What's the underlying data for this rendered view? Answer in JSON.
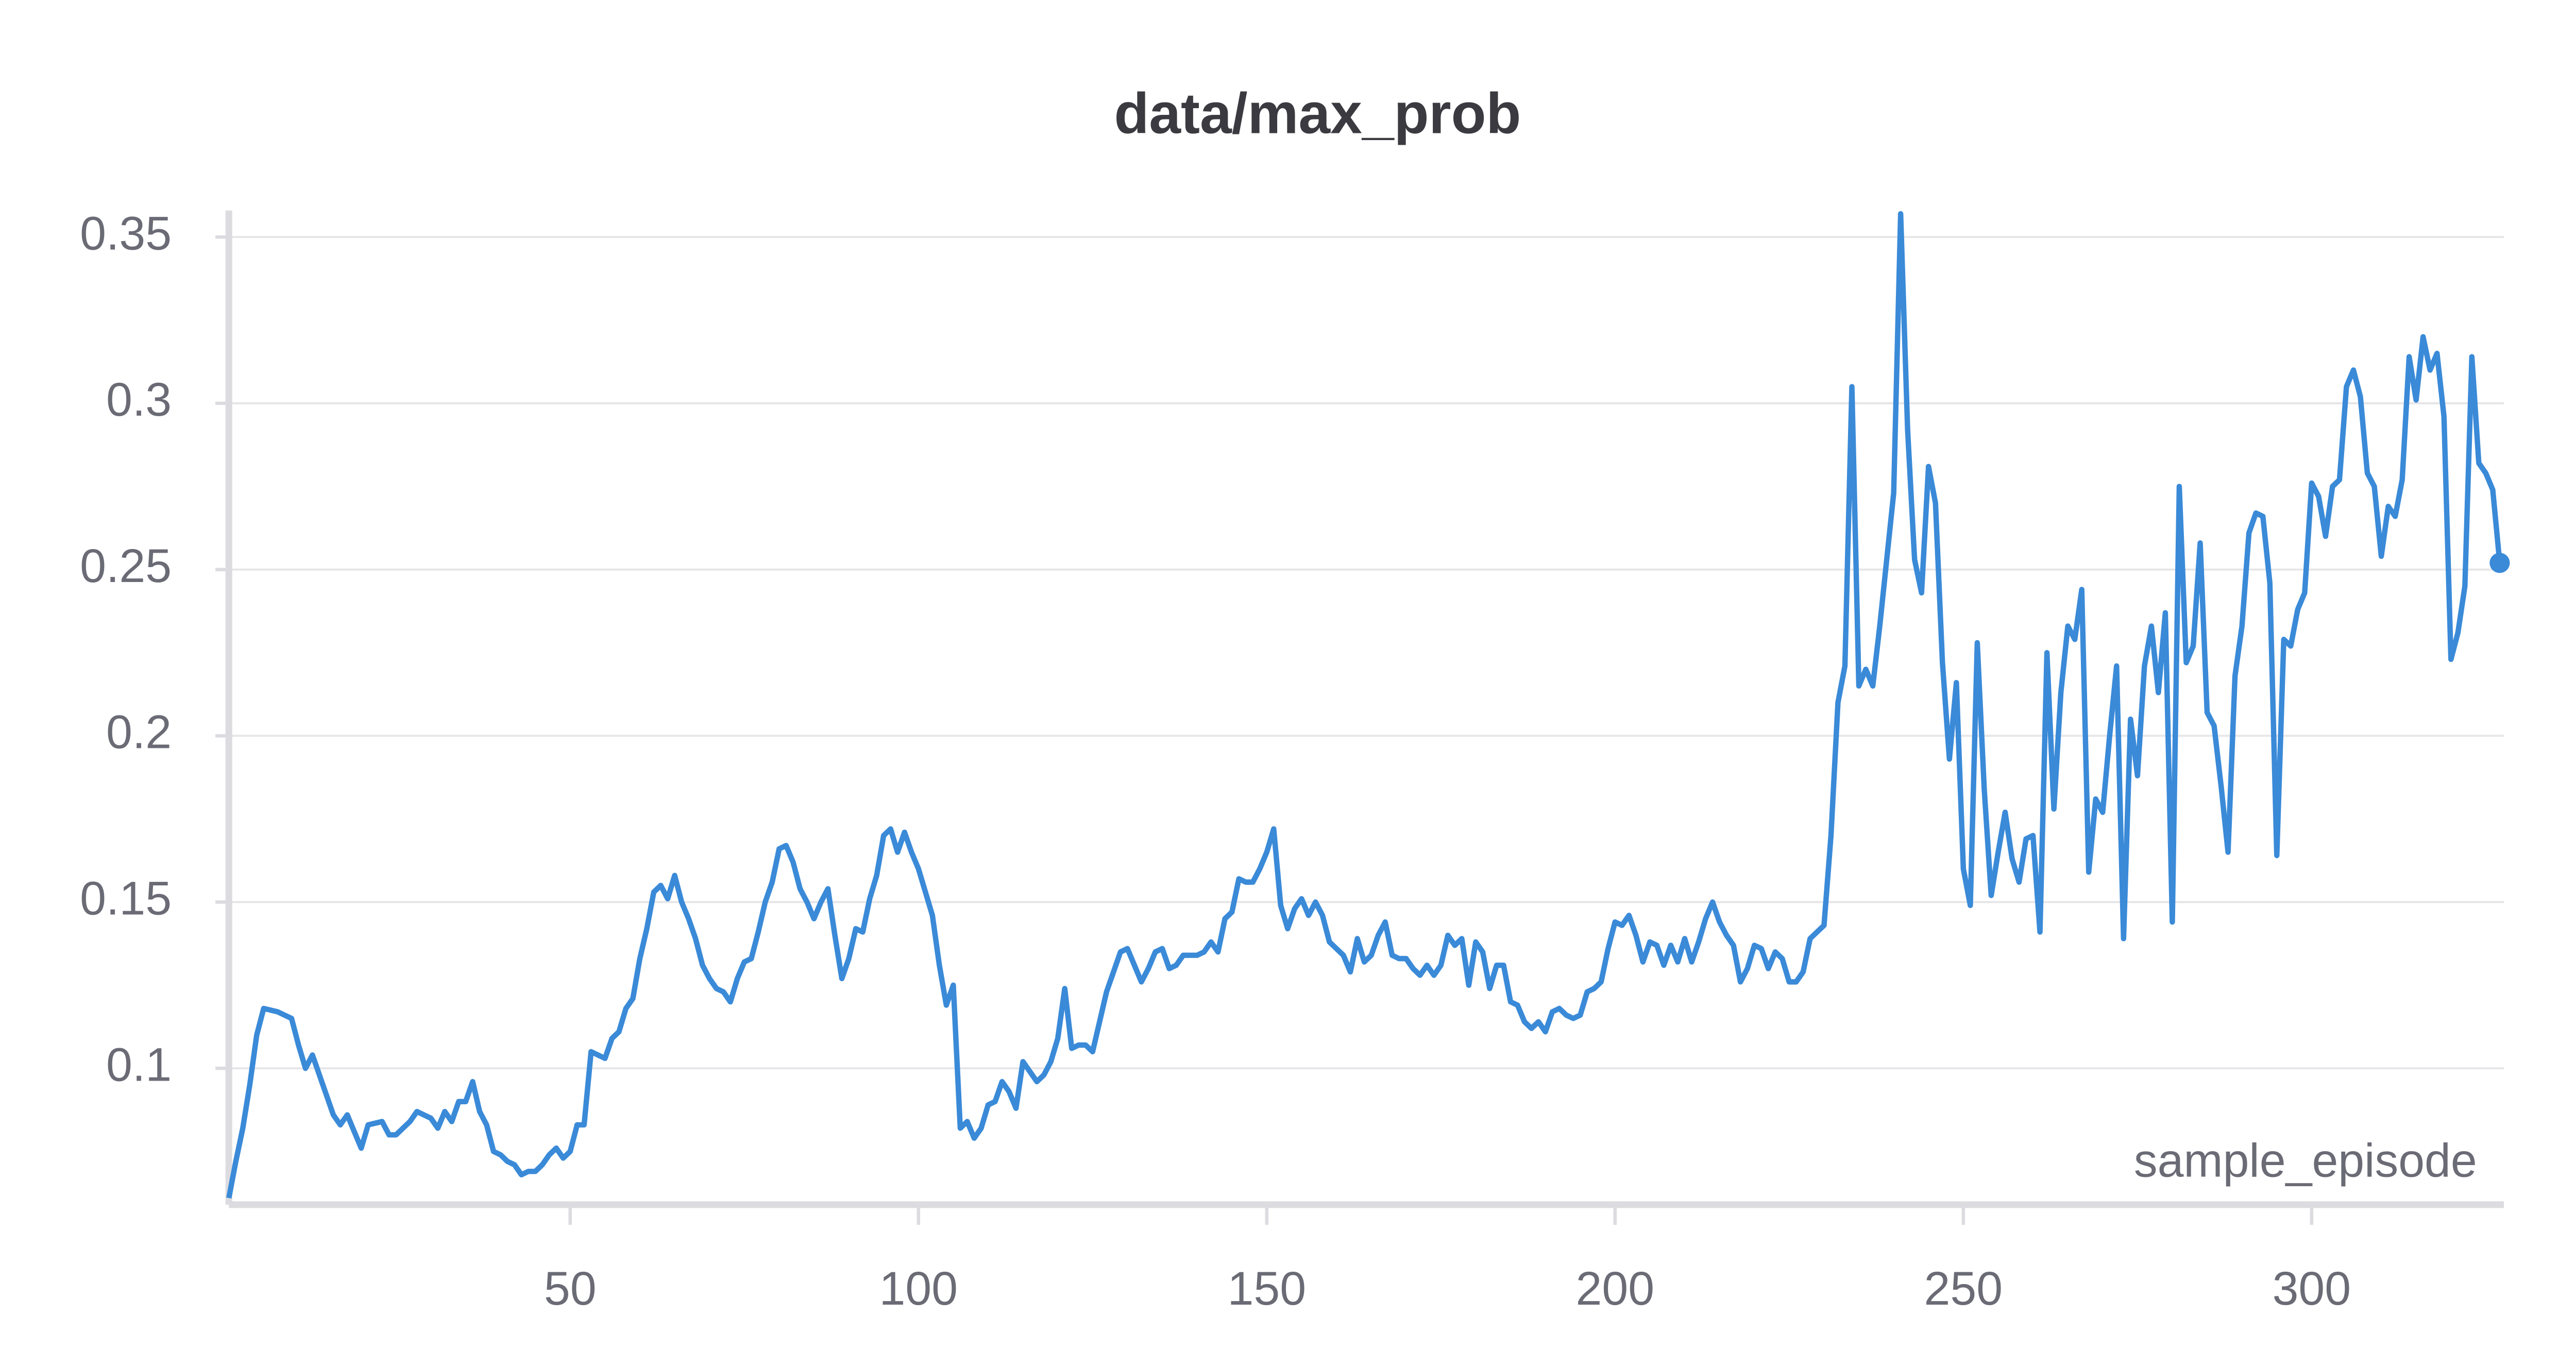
{
  "chart_data": {
    "type": "line",
    "title": "data/max_prob",
    "x_label": "sample_episode",
    "color": "#3a8ad8",
    "grid": true,
    "xlim": [
      1,
      327.6
    ],
    "xticks": [
      50,
      100,
      150,
      200,
      250,
      300
    ],
    "ylim": [
      0.059,
      0.358
    ],
    "yticks": [
      0.1,
      0.15,
      0.2,
      0.25,
      0.3,
      0.35
    ],
    "x": [
      1,
      2,
      3,
      4,
      5,
      6,
      8,
      10,
      11,
      12,
      13,
      15,
      16,
      17,
      18,
      19,
      20,
      21,
      23,
      24,
      25,
      26,
      27,
      28,
      30,
      31,
      32,
      33,
      34,
      35,
      36,
      37,
      38,
      39,
      40,
      41,
      42,
      43,
      44,
      45,
      46,
      47,
      48,
      49,
      50,
      51,
      52,
      53,
      55,
      56,
      57,
      58,
      59,
      60,
      61,
      62,
      63,
      64,
      65,
      66,
      67,
      68,
      69,
      70,
      71,
      72,
      73,
      74,
      75,
      76,
      77,
      78,
      79,
      80,
      81,
      82,
      83,
      84,
      85,
      86,
      87,
      88,
      89,
      90,
      91,
      92,
      93,
      94,
      95,
      96,
      97,
      98,
      99,
      100,
      101,
      102,
      103,
      104,
      105,
      106,
      107,
      108,
      109,
      110,
      111,
      112,
      113,
      114,
      115,
      116,
      117,
      118,
      119,
      120,
      121,
      122,
      123,
      124,
      125,
      126,
      127,
      128,
      129,
      130,
      131,
      132,
      133,
      134,
      135,
      136,
      137,
      138,
      139,
      140,
      141,
      142,
      143,
      144,
      145,
      146,
      147,
      148,
      149,
      150,
      151,
      152,
      153,
      154,
      155,
      156,
      157,
      158,
      159,
      160,
      161,
      162,
      163,
      164,
      165,
      166,
      167,
      168,
      169,
      170,
      171,
      172,
      173,
      174,
      175,
      176,
      177,
      178,
      179,
      180,
      181,
      182,
      183,
      184,
      185,
      186,
      187,
      188,
      189,
      190,
      191,
      192,
      193,
      194,
      195,
      196,
      197,
      198,
      199,
      200,
      201,
      202,
      203,
      204,
      205,
      206,
      207,
      208,
      209,
      210,
      211,
      212,
      213,
      214,
      215,
      216,
      217,
      218,
      219,
      220,
      221,
      222,
      223,
      224,
      225,
      226,
      227,
      228,
      229,
      230,
      231,
      232,
      233,
      234,
      235,
      236,
      237,
      238,
      239,
      240,
      241,
      242,
      243,
      244,
      245,
      246,
      247,
      248,
      249,
      250,
      251,
      252,
      253,
      254,
      255,
      256,
      257,
      258,
      259,
      260,
      261,
      262,
      263,
      264,
      265,
      266,
      267,
      268,
      269,
      270,
      271,
      272,
      273,
      274,
      275,
      276,
      277,
      278,
      279,
      280,
      281,
      282,
      283,
      284,
      285,
      286,
      287,
      288,
      289,
      290,
      291,
      292,
      293,
      294,
      295,
      296,
      297,
      298,
      299,
      300,
      301,
      302,
      303,
      304,
      305,
      306,
      307,
      308,
      309,
      310,
      311,
      312,
      313,
      314,
      315,
      316,
      317,
      318,
      319,
      320,
      321,
      322,
      323,
      324,
      325,
      326,
      327
    ],
    "values": [
      0.061,
      0.072,
      0.082,
      0.095,
      0.11,
      0.118,
      0.117,
      0.115,
      0.107,
      0.1,
      0.104,
      0.092,
      0.086,
      0.083,
      0.086,
      0.081,
      0.076,
      0.083,
      0.084,
      0.08,
      0.08,
      0.082,
      0.084,
      0.087,
      0.085,
      0.082,
      0.087,
      0.084,
      0.09,
      0.09,
      0.096,
      0.087,
      0.083,
      0.075,
      0.074,
      0.072,
      0.071,
      0.068,
      0.069,
      0.069,
      0.071,
      0.074,
      0.076,
      0.073,
      0.075,
      0.083,
      0.083,
      0.105,
      0.103,
      0.109,
      0.111,
      0.118,
      0.121,
      0.133,
      0.142,
      0.153,
      0.155,
      0.151,
      0.158,
      0.15,
      0.145,
      0.139,
      0.131,
      0.127,
      0.124,
      0.123,
      0.12,
      0.127,
      0.132,
      0.133,
      0.141,
      0.15,
      0.156,
      0.166,
      0.167,
      0.162,
      0.154,
      0.15,
      0.145,
      0.15,
      0.154,
      0.14,
      0.127,
      0.133,
      0.142,
      0.141,
      0.151,
      0.158,
      0.17,
      0.172,
      0.165,
      0.171,
      0.165,
      0.16,
      0.153,
      0.146,
      0.131,
      0.119,
      0.125,
      0.082,
      0.084,
      0.079,
      0.082,
      0.089,
      0.09,
      0.096,
      0.093,
      0.088,
      0.102,
      0.099,
      0.096,
      0.098,
      0.102,
      0.109,
      0.124,
      0.106,
      0.107,
      0.107,
      0.105,
      0.114,
      0.123,
      0.129,
      0.135,
      0.136,
      0.131,
      0.126,
      0.13,
      0.135,
      0.136,
      0.13,
      0.131,
      0.134,
      0.134,
      0.134,
      0.135,
      0.138,
      0.135,
      0.145,
      0.147,
      0.157,
      0.156,
      0.156,
      0.16,
      0.165,
      0.172,
      0.149,
      0.142,
      0.148,
      0.151,
      0.146,
      0.15,
      0.146,
      0.138,
      0.136,
      0.134,
      0.129,
      0.139,
      0.132,
      0.134,
      0.14,
      0.144,
      0.134,
      0.133,
      0.133,
      0.13,
      0.128,
      0.131,
      0.128,
      0.131,
      0.14,
      0.137,
      0.139,
      0.125,
      0.138,
      0.135,
      0.124,
      0.131,
      0.131,
      0.12,
      0.119,
      0.114,
      0.112,
      0.114,
      0.111,
      0.117,
      0.118,
      0.116,
      0.115,
      0.116,
      0.123,
      0.124,
      0.126,
      0.136,
      0.144,
      0.143,
      0.146,
      0.14,
      0.132,
      0.138,
      0.137,
      0.131,
      0.137,
      0.132,
      0.139,
      0.132,
      0.138,
      0.145,
      0.15,
      0.144,
      0.14,
      0.137,
      0.126,
      0.13,
      0.137,
      0.136,
      0.13,
      0.135,
      0.133,
      0.126,
      0.126,
      0.129,
      0.139,
      0.141,
      0.143,
      0.17,
      0.21,
      0.221,
      0.305,
      0.215,
      0.22,
      0.215,
      0.233,
      0.253,
      0.273,
      0.357,
      0.292,
      0.253,
      0.243,
      0.281,
      0.27,
      0.222,
      0.193,
      0.216,
      0.16,
      0.149,
      0.228,
      0.184,
      0.152,
      0.165,
      0.177,
      0.163,
      0.156,
      0.169,
      0.17,
      0.141,
      0.225,
      0.178,
      0.213,
      0.233,
      0.229,
      0.244,
      0.159,
      0.181,
      0.177,
      0.2,
      0.221,
      0.139,
      0.205,
      0.188,
      0.221,
      0.233,
      0.213,
      0.237,
      0.144,
      0.275,
      0.222,
      0.227,
      0.258,
      0.207,
      0.203,
      0.185,
      0.165,
      0.218,
      0.233,
      0.261,
      0.267,
      0.266,
      0.246,
      0.164,
      0.229,
      0.227,
      0.238,
      0.243,
      0.276,
      0.272,
      0.26,
      0.275,
      0.277,
      0.305,
      0.31,
      0.302,
      0.279,
      0.275,
      0.254,
      0.269,
      0.266,
      0.277,
      0.314,
      0.301,
      0.32,
      0.31,
      0.315,
      0.296,
      0.223,
      0.231,
      0.245,
      0.314,
      0.282,
      0.279,
      0.274,
      0.252
    ]
  }
}
